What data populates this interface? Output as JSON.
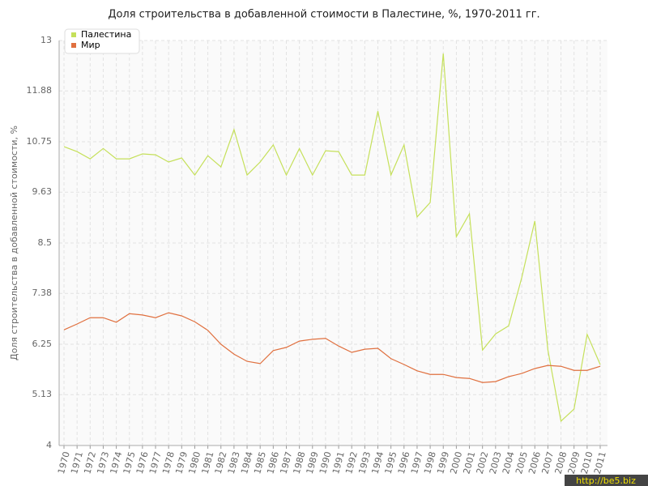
{
  "chart_data": {
    "type": "line",
    "title": "Доля строительства в добавленной стоимости в Палестине, %, 1970-2011 гг.",
    "y_label": "Доля строительства в добавленной стоимости, %",
    "watermark": "http://be5.biz",
    "categories": [
      "1970",
      "1971",
      "1972",
      "1973",
      "1974",
      "1975",
      "1976",
      "1977",
      "1978",
      "1979",
      "1980",
      "1981",
      "1982",
      "1983",
      "1984",
      "1985",
      "1986",
      "1987",
      "1988",
      "1989",
      "1990",
      "1991",
      "1992",
      "1993",
      "1994",
      "1995",
      "1996",
      "1997",
      "1998",
      "1999",
      "2000",
      "2001",
      "2002",
      "2003",
      "2004",
      "2005",
      "2006",
      "2007",
      "2008",
      "2009",
      "2010",
      "2011"
    ],
    "series": [
      {
        "name": "Палестина",
        "color": "#c5e05a",
        "values": [
          10.64,
          10.53,
          10.37,
          10.6,
          10.37,
          10.37,
          10.48,
          10.46,
          10.3,
          10.39,
          10.01,
          10.44,
          10.19,
          11.02,
          10.01,
          10.3,
          10.68,
          10.01,
          10.6,
          10.01,
          10.55,
          10.53,
          10.01,
          10.01,
          11.43,
          10.01,
          10.68,
          9.08,
          9.4,
          12.71,
          8.64,
          9.15,
          6.12,
          6.48,
          6.66,
          7.73,
          8.99,
          6.12,
          4.54,
          4.81,
          6.47,
          5.8
        ]
      },
      {
        "name": "Мир",
        "color": "#e0703f",
        "values": [
          6.57,
          6.7,
          6.84,
          6.84,
          6.74,
          6.93,
          6.9,
          6.84,
          6.95,
          6.88,
          6.75,
          6.56,
          6.25,
          6.03,
          5.87,
          5.82,
          6.11,
          6.18,
          6.32,
          6.36,
          6.38,
          6.21,
          6.07,
          6.14,
          6.16,
          5.93,
          5.8,
          5.66,
          5.58,
          5.58,
          5.51,
          5.49,
          5.4,
          5.42,
          5.53,
          5.6,
          5.71,
          5.78,
          5.76,
          5.67,
          5.67,
          5.76
        ]
      }
    ],
    "ylim": [
      4,
      13
    ],
    "yticks": [
      4,
      5.13,
      6.25,
      7.38,
      8.5,
      9.63,
      10.75,
      11.88,
      13
    ],
    "grid": true,
    "legend": "top-left"
  }
}
